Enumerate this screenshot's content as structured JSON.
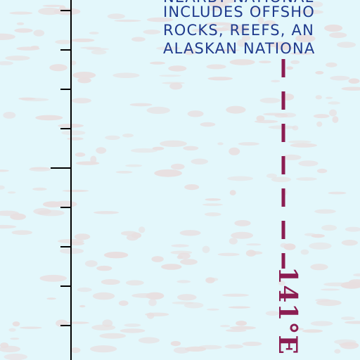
{
  "map": {
    "background_color": "#e3f7fb",
    "ice_texture_color": "#e8dfe0",
    "text_color": "#1f3a8c",
    "meridian_color": "#8b1d52",
    "note_lines": [
      "NEARBY NATIONAL",
      "INCLUDES OFFSHO",
      "ROCKS, REEFS, AN",
      "ALASKAN NATIONA"
    ],
    "meridian_label": "141°E",
    "scale_bar": {
      "color": "#000000"
    }
  }
}
